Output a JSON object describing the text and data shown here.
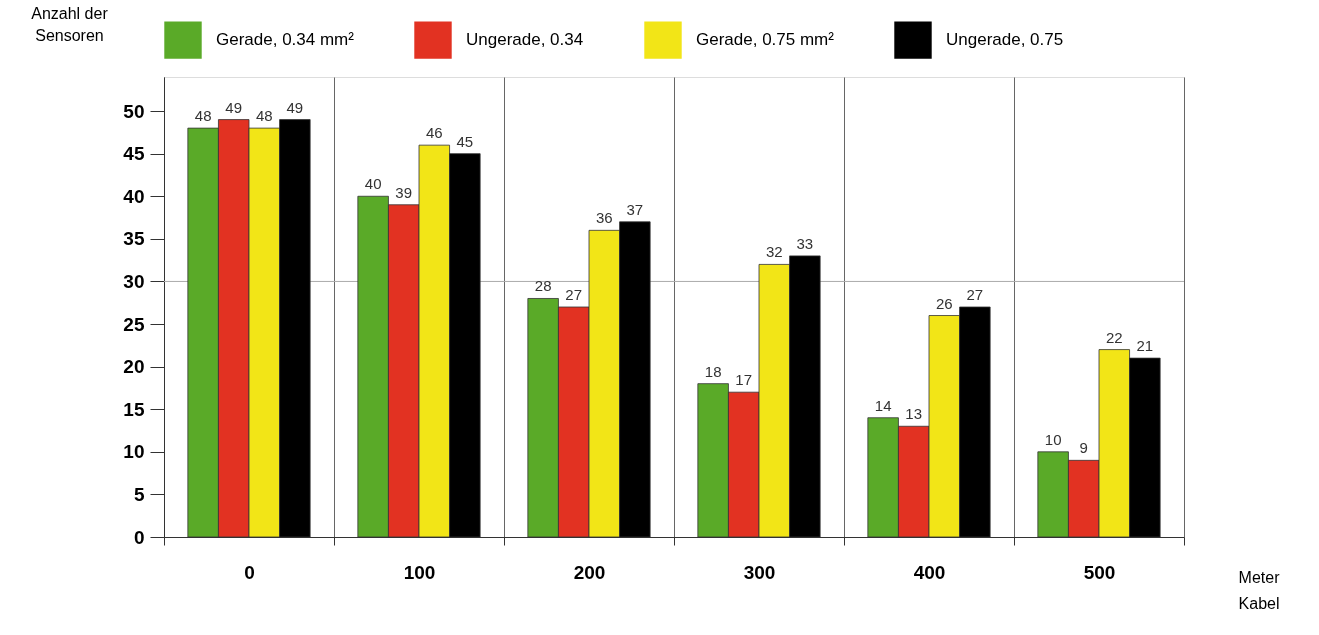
{
  "chart_data": {
    "type": "bar",
    "xlabel": "Meter Kabel",
    "ylabel": "Anzahl der Sensoren",
    "categories": [
      "0",
      "100",
      "200",
      "300",
      "400",
      "500"
    ],
    "series": [
      {
        "name": "Gerade, 0.34 mm²",
        "color": "#5aaa28",
        "values": [
          48,
          40,
          28,
          18,
          14,
          10
        ]
      },
      {
        "name": "Ungerade, 0.34",
        "color": "#e23222",
        "values": [
          49,
          39,
          27,
          17,
          13,
          9
        ]
      },
      {
        "name": "Gerade, 0.75 mm²",
        "color": "#f2e517",
        "values": [
          48,
          46,
          36,
          32,
          26,
          22
        ]
      },
      {
        "name": "Ungerade, 0.75",
        "color": "#000000",
        "values": [
          49,
          45,
          37,
          33,
          27,
          21
        ]
      }
    ],
    "ylim": [
      0,
      54
    ],
    "yticks": [
      0,
      5,
      10,
      15,
      20,
      25,
      30,
      35,
      40,
      45,
      50
    ],
    "ref_lines": [
      {
        "axis": "y",
        "value": 30,
        "color": "#aaaaaa"
      }
    ],
    "grid": "x",
    "legend": "top",
    "data_labels": true
  }
}
